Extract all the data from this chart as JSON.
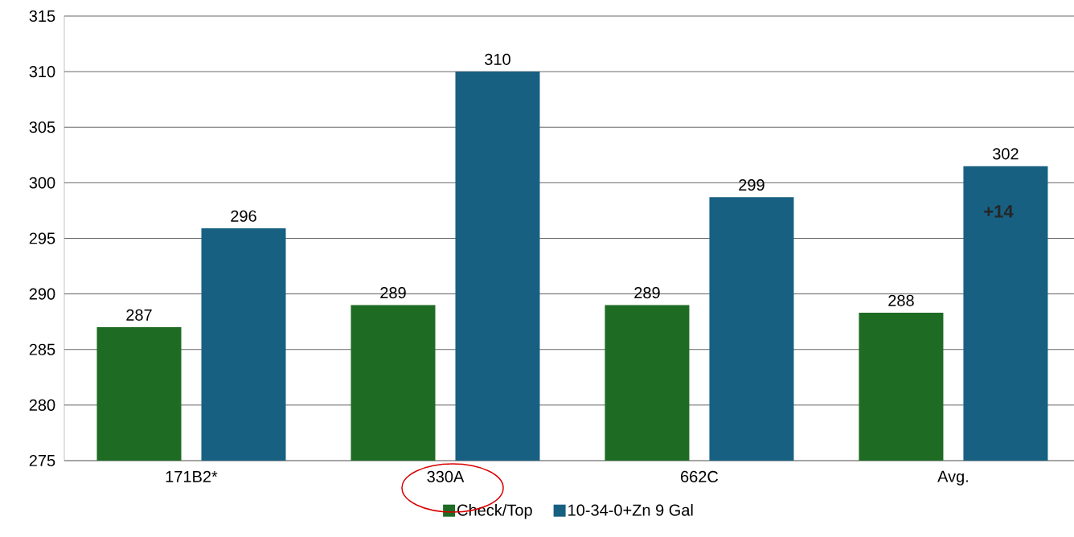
{
  "chart_data": {
    "type": "bar",
    "categories": [
      "171B2*",
      "330A",
      "662C",
      "Avg."
    ],
    "series": [
      {
        "name": "Check/Top",
        "color": "#1e6b23",
        "values": [
          287,
          289,
          289,
          288.3
        ],
        "value_labels": [
          "287",
          "289",
          "289",
          "288"
        ]
      },
      {
        "name": "10-34-0+Zn 9 Gal",
        "color": "#176082",
        "values": [
          295.9,
          310,
          298.7,
          301.5
        ],
        "value_labels": [
          "296",
          "310",
          "299",
          "302"
        ]
      }
    ],
    "ylim": [
      275,
      315
    ],
    "yticks": [
      275,
      280,
      285,
      290,
      295,
      300,
      305,
      310,
      315
    ],
    "grid": "y",
    "legend": "bottom",
    "annotations": [
      "+14"
    ]
  }
}
